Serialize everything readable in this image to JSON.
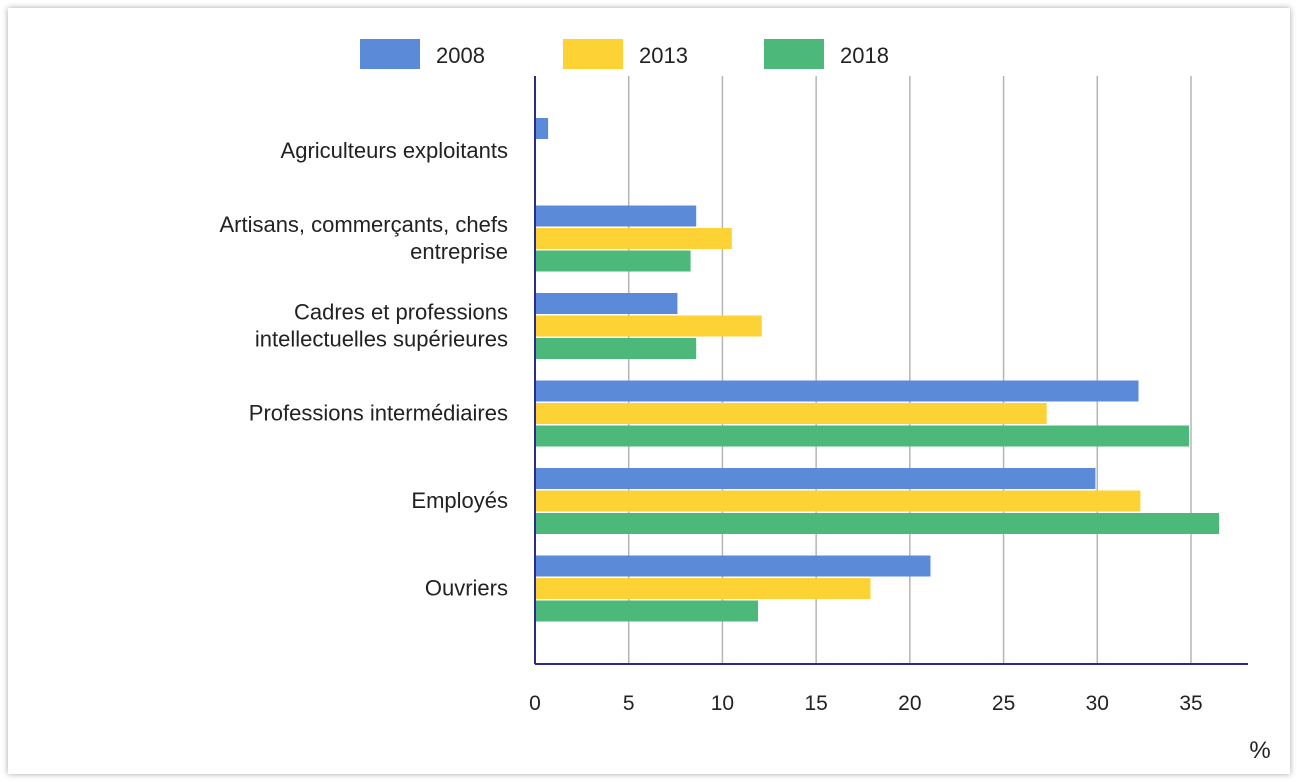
{
  "chart_data": {
    "type": "bar",
    "orientation": "horizontal",
    "categories": [
      [
        "Agriculteurs exploitants"
      ],
      [
        "Artisans, commerçants, chefs",
        "entreprise"
      ],
      [
        "Cadres et professions",
        "intellectuelles supérieures"
      ],
      [
        "Professions intermédiaires"
      ],
      [
        "Employés"
      ],
      [
        "Ouvriers"
      ]
    ],
    "series": [
      {
        "name": "2008",
        "color": "#5b8ad8",
        "values": [
          0.7,
          8.6,
          7.6,
          32.2,
          29.9,
          21.1
        ]
      },
      {
        "name": "2013",
        "color": "#fdd235",
        "values": [
          0,
          10.5,
          12.1,
          27.3,
          32.3,
          17.9
        ]
      },
      {
        "name": "2018",
        "color": "#4cb879",
        "values": [
          0,
          8.3,
          8.6,
          34.9,
          36.5,
          11.9
        ]
      }
    ],
    "xlim": [
      0,
      38
    ],
    "xticks": [
      0,
      5,
      10,
      15,
      20,
      25,
      30,
      35
    ],
    "x_unit_label": "%",
    "grid": true,
    "legend_position": "top"
  }
}
